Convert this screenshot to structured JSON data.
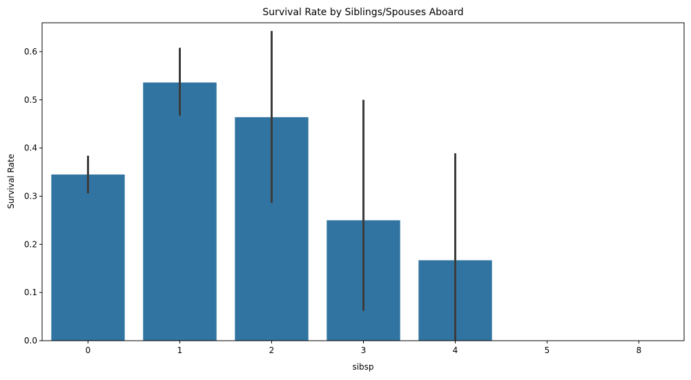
{
  "chart_data": {
    "type": "bar",
    "title": "Survival Rate by Siblings/Spouses Aboard",
    "xlabel": "sibsp",
    "ylabel": "Survival Rate",
    "categories": [
      "0",
      "1",
      "2",
      "3",
      "4",
      "5",
      "8"
    ],
    "values": [
      0.345,
      0.536,
      0.464,
      0.25,
      0.167,
      0.0,
      0.0
    ],
    "error_low": [
      0.306,
      0.467,
      0.286,
      0.062,
      0.0,
      0.0,
      0.0
    ],
    "error_high": [
      0.384,
      0.608,
      0.643,
      0.5,
      0.389,
      0.0,
      0.0
    ],
    "ylim": [
      0,
      0.66
    ],
    "yticks": [
      "0.0",
      "0.1",
      "0.2",
      "0.3",
      "0.4",
      "0.5",
      "0.6"
    ],
    "grid": false,
    "bar_color": "#3274a1",
    "errorbar_color": "#3b3b3b"
  }
}
